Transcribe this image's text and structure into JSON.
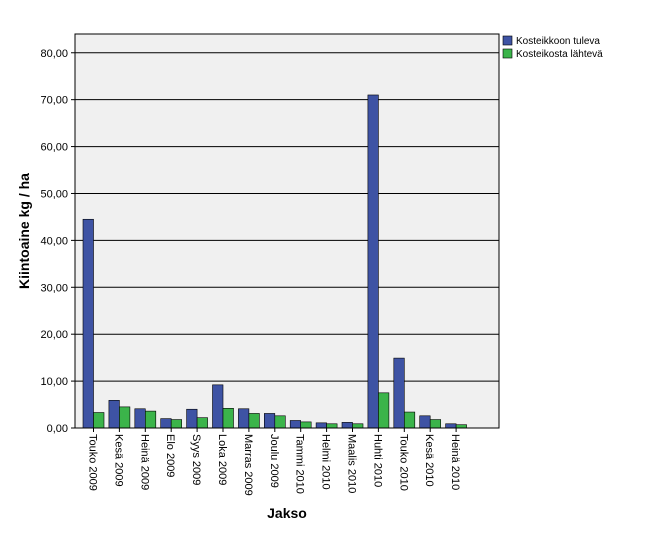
{
  "chart_data": {
    "type": "bar",
    "title": "",
    "xlabel": "Jakso",
    "ylabel": "Kiintoaine kg / ha",
    "ylim": [
      0,
      84
    ],
    "yticks": [
      0,
      10,
      20,
      30,
      40,
      50,
      60,
      70,
      80
    ],
    "ytick_labels": [
      "0,00",
      "10,00",
      "20,00",
      "30,00",
      "40,00",
      "50,00",
      "60,00",
      "70,00",
      "80,00"
    ],
    "grid": true,
    "legend_position": "top-right",
    "categories": [
      "Touko 2009",
      "Kesä 2009",
      "Heinä 2009",
      "Elo 2009",
      "Syys 2009",
      "Loka 2009",
      "Marras 2009",
      "Joulu 2009",
      "Tammi 2010",
      "Helmi 2010",
      "Maalis 2010",
      "Huhti 2010",
      "Touko 2010",
      "Kesä 2010",
      "Heinä 2010"
    ],
    "series": [
      {
        "name": "Kosteikkoon tuleva",
        "color": "#3e53a4",
        "values": [
          44.5,
          5.9,
          4.1,
          2.0,
          4.0,
          9.2,
          4.1,
          3.1,
          1.6,
          1.1,
          1.2,
          71.0,
          14.9,
          2.6,
          0.9
        ]
      },
      {
        "name": "Kosteikosta lähtevä",
        "color": "#3bb44a",
        "values": [
          3.3,
          4.5,
          3.6,
          1.8,
          2.2,
          4.2,
          3.1,
          2.6,
          1.3,
          0.9,
          0.9,
          7.5,
          3.4,
          1.8,
          0.7
        ]
      }
    ]
  }
}
